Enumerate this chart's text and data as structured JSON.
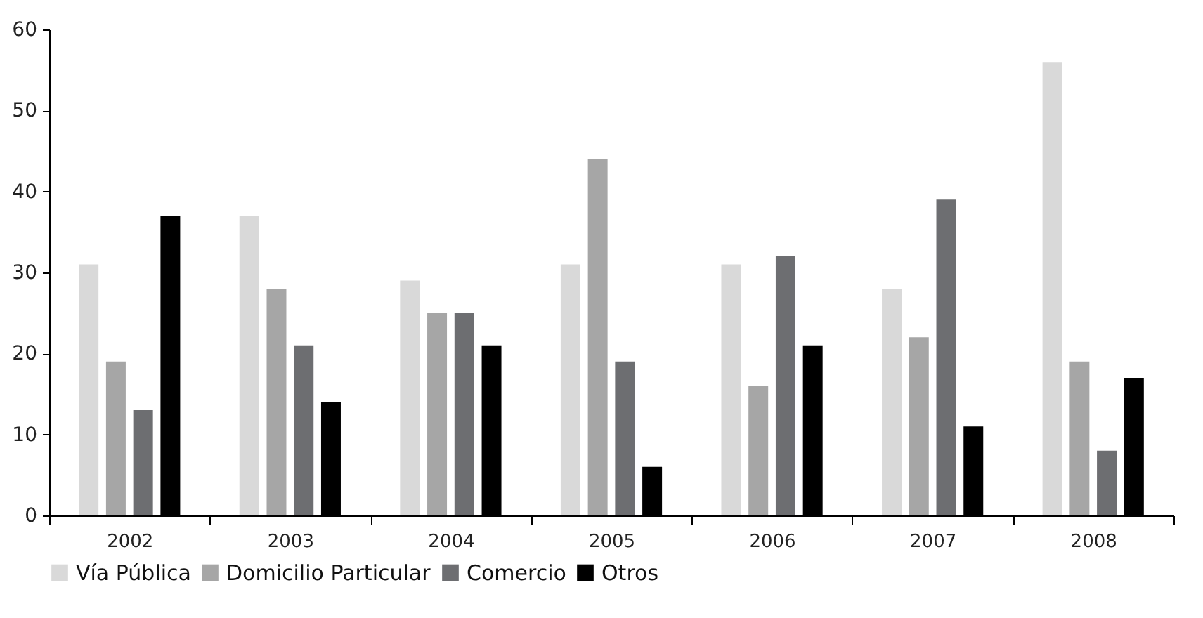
{
  "chart_data": {
    "type": "bar",
    "categories": [
      "2002",
      "2003",
      "2004",
      "2005",
      "2006",
      "2007",
      "2008"
    ],
    "series": [
      {
        "name": "Vía Pública",
        "color": "#d9d9d9",
        "values": [
          31,
          37,
          29,
          31,
          31,
          28,
          56
        ]
      },
      {
        "name": "Domicilio Particular",
        "color": "#a6a6a6",
        "values": [
          19,
          28,
          25,
          44,
          16,
          22,
          19
        ]
      },
      {
        "name": "Comercio",
        "color": "#6d6e71",
        "values": [
          13,
          21,
          25,
          19,
          32,
          39,
          8
        ]
      },
      {
        "name": "Otros",
        "color": "#000000",
        "values": [
          37,
          14,
          21,
          6,
          21,
          11,
          17
        ]
      }
    ],
    "ylim": [
      0,
      60
    ],
    "yticks": [
      0,
      10,
      20,
      30,
      40,
      50,
      60
    ],
    "grid": false,
    "legend": "bottom"
  }
}
